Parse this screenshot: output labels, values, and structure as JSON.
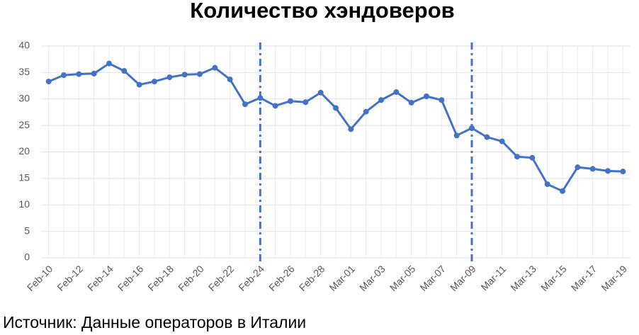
{
  "chart_data": {
    "type": "line",
    "title": "Количество хэндоверов",
    "categories": [
      "Feb-10",
      null,
      "Feb-12",
      null,
      "Feb-14",
      null,
      "Feb-16",
      null,
      "Feb-18",
      null,
      "Feb-20",
      null,
      "Feb-22",
      null,
      "Feb-24",
      null,
      "Feb-26",
      null,
      "Feb-28",
      null,
      "Mar-01",
      null,
      "Mar-03",
      null,
      "Mar-05",
      null,
      "Mar-07",
      null,
      "Mar-09",
      null,
      "Mar-11",
      null,
      "Mar-13",
      null,
      "Mar-15",
      null,
      "Mar-17",
      null,
      "Mar-19"
    ],
    "values": [
      33.3,
      34.5,
      34.7,
      34.8,
      36.7,
      35.3,
      32.7,
      33.3,
      34.1,
      34.6,
      34.7,
      35.9,
      33.7,
      29.0,
      30.2,
      28.7,
      29.6,
      29.4,
      31.2,
      28.3,
      24.3,
      27.6,
      29.8,
      31.3,
      29.3,
      30.5,
      29.8,
      23.1,
      24.5,
      22.8,
      22.0,
      19.1,
      18.9,
      13.9,
      12.6,
      17.1,
      16.8,
      16.4,
      16.3
    ],
    "color": "#4472c4",
    "ylim": [
      0,
      40
    ],
    "yticks": [
      0,
      5,
      10,
      15,
      20,
      25,
      30,
      35,
      40
    ],
    "grid": true,
    "vlines": [
      "Feb-24",
      "Mar-09"
    ],
    "source": "Источник: Данные операторов в Италии"
  }
}
